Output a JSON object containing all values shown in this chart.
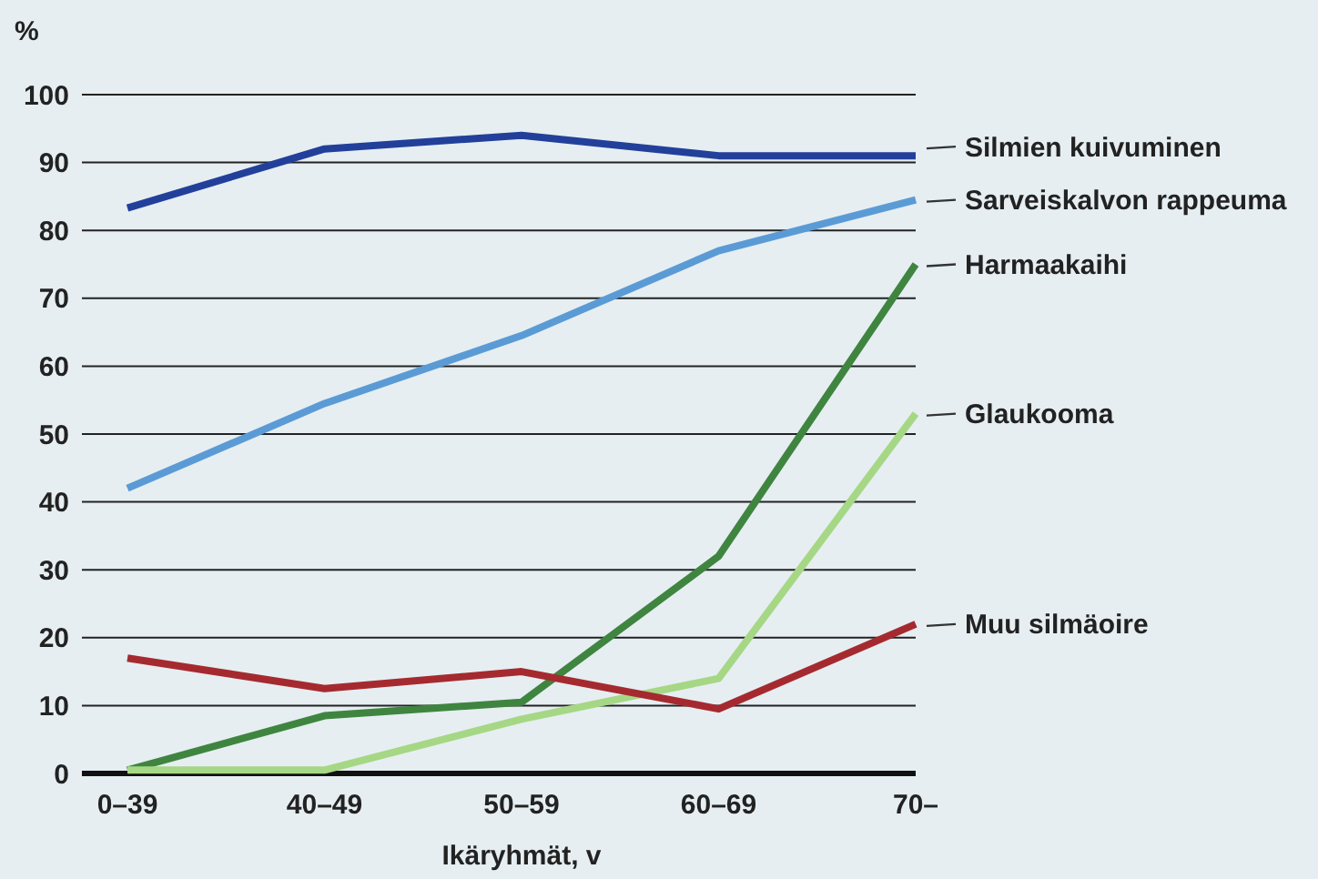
{
  "chart_data": {
    "type": "line",
    "ylabel": "%",
    "xlabel": "Ikäryhmät, v",
    "categories": [
      "0–39",
      "40–49",
      "50–59",
      "60–69",
      "70–"
    ],
    "ylim": [
      0,
      100
    ],
    "yticks": [
      0,
      10,
      20,
      30,
      40,
      50,
      60,
      70,
      80,
      90,
      100
    ],
    "grid": "y",
    "legend": "right",
    "marker": "none",
    "line_style": "solid",
    "series": [
      {
        "name": "Silmien kuivuminen",
        "color": "#22409a",
        "values": [
          83.3,
          92,
          94,
          91,
          91
        ]
      },
      {
        "name": "Sarveiskalvon rappeuma",
        "color": "#5b9bd5",
        "values": [
          42,
          54.5,
          64.5,
          77,
          84.5
        ]
      },
      {
        "name": "Harmaakaihi",
        "color": "#3f8540",
        "values": [
          0.5,
          8.5,
          10.5,
          32,
          75
        ]
      },
      {
        "name": "Glaukooma",
        "color": "#a6d785",
        "values": [
          0.5,
          0.5,
          8,
          14,
          53
        ]
      },
      {
        "name": "Muu silmäoire",
        "color": "#a52a2f",
        "values": [
          17,
          12.5,
          15,
          9.5,
          22
        ]
      }
    ]
  }
}
